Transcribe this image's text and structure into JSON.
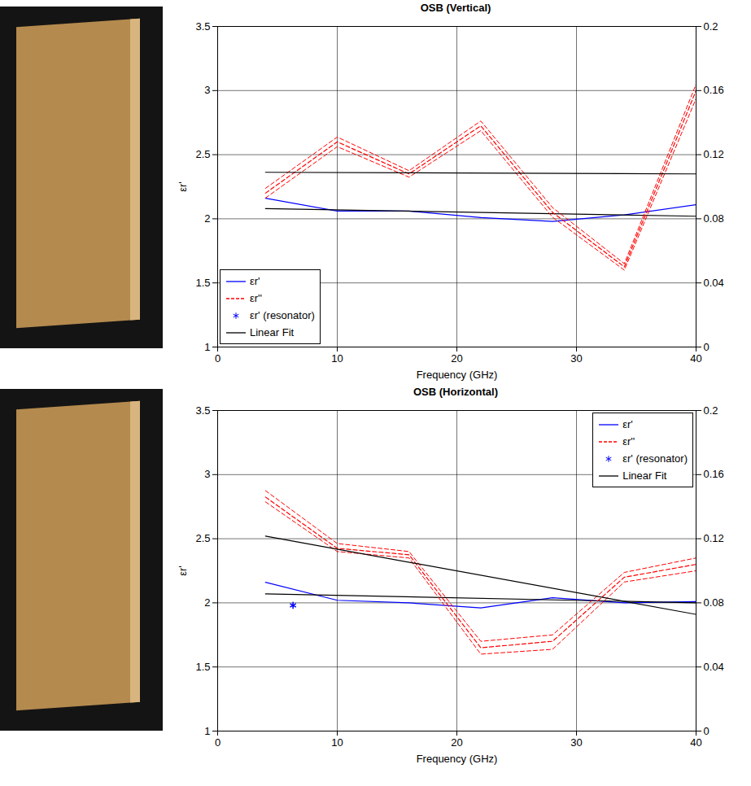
{
  "chart_data": [
    {
      "type": "line",
      "title": "OSB (Vertical)",
      "x_label": "Frequency (GHz)",
      "y_label": "εr'",
      "xlim": [
        0,
        40
      ],
      "xticks": [
        0,
        10,
        20,
        30,
        40
      ],
      "ylim": [
        1,
        3.5
      ],
      "yticks": [
        1,
        1.5,
        2,
        2.5,
        3,
        3.5
      ],
      "y2lim": [
        0,
        0.2
      ],
      "y2ticks": [
        0,
        0.04,
        0.08,
        0.12,
        0.16,
        0.2
      ],
      "grid": true,
      "legend": "lower left",
      "series": [
        {
          "name": "εr'",
          "color": "#0000ff",
          "line_style": "solid",
          "axis": "y",
          "x": [
            4,
            10,
            16,
            22,
            28,
            34,
            40
          ],
          "values": [
            2.16,
            2.06,
            2.06,
            2.01,
            1.98,
            2.03,
            2.11
          ]
        },
        {
          "name": "εr''",
          "color": "#ff0000",
          "line_style": "dashed",
          "axis": "y2",
          "x": [
            4,
            10,
            16,
            22,
            28,
            34,
            40
          ],
          "values": [
            0.096,
            0.128,
            0.108,
            0.138,
            0.084,
            0.05,
            0.16
          ],
          "lower": [
            0.093,
            0.125,
            0.106,
            0.135,
            0.081,
            0.048,
            0.155
          ],
          "upper": [
            0.099,
            0.131,
            0.11,
            0.141,
            0.087,
            0.052,
            0.164
          ]
        },
        {
          "name": "εr' (resonator)",
          "color": "#0000ff",
          "type": "scatter",
          "marker": "asterisk",
          "axis": "y",
          "x": [],
          "values": []
        },
        {
          "name": "Linear Fit",
          "color": "#000000",
          "line_style": "solid",
          "axis": "y",
          "x": [
            4,
            40
          ],
          "values": [
            2.08,
            2.02
          ]
        },
        {
          "name": "Linear Fit",
          "color": "#000000",
          "line_style": "solid",
          "axis": "y2",
          "x": [
            4,
            40
          ],
          "values": [
            0.109,
            0.108
          ]
        }
      ]
    },
    {
      "type": "line",
      "title": "OSB (Horizontal)",
      "x_label": "Frequency (GHz)",
      "y_label": "εr'",
      "xlim": [
        0,
        40
      ],
      "xticks": [
        0,
        10,
        20,
        30,
        40
      ],
      "ylim": [
        1,
        3.5
      ],
      "yticks": [
        1,
        1.5,
        2,
        2.5,
        3,
        3.5
      ],
      "y2lim": [
        0,
        0.2
      ],
      "y2ticks": [
        0,
        0.04,
        0.08,
        0.12,
        0.16,
        0.2
      ],
      "grid": true,
      "legend": "upper right",
      "series": [
        {
          "name": "εr'",
          "color": "#0000ff",
          "line_style": "solid",
          "axis": "y",
          "x": [
            4,
            10,
            16,
            22,
            28,
            34,
            40
          ],
          "values": [
            2.16,
            2.02,
            2.0,
            1.96,
            2.04,
            2.0,
            2.01
          ]
        },
        {
          "name": "εr''",
          "color": "#ff0000",
          "line_style": "dashed",
          "axis": "y2",
          "x": [
            4,
            10,
            16,
            22,
            28,
            34,
            40
          ],
          "values": [
            0.146,
            0.114,
            0.11,
            0.052,
            0.056,
            0.096,
            0.104
          ],
          "lower": [
            0.143,
            0.112,
            0.108,
            0.048,
            0.051,
            0.093,
            0.1
          ],
          "upper": [
            0.15,
            0.117,
            0.112,
            0.056,
            0.06,
            0.099,
            0.108
          ]
        },
        {
          "name": "εr' (resonator)",
          "color": "#0000ff",
          "type": "scatter",
          "marker": "asterisk",
          "axis": "y",
          "x": [
            6.3
          ],
          "values": [
            1.98
          ]
        },
        {
          "name": "Linear Fit",
          "color": "#000000",
          "line_style": "solid",
          "axis": "y",
          "x": [
            4,
            40
          ],
          "values": [
            2.07,
            2.0
          ]
        },
        {
          "name": "Linear Fit",
          "color": "#000000",
          "line_style": "solid",
          "axis": "y2",
          "x": [
            4,
            40
          ],
          "values": [
            0.1216,
            0.0728
          ]
        }
      ]
    }
  ]
}
